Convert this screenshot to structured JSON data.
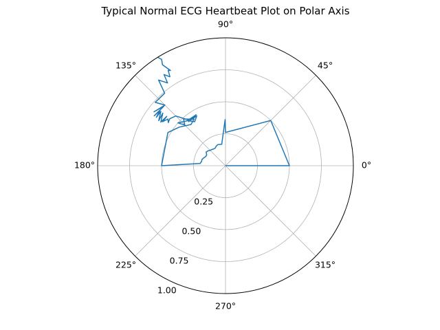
{
  "chart_data": {
    "type": "line",
    "projection": "polar",
    "title": "Typical Normal ECG Heartbeat Plot on Polar Axis",
    "theta_unit": "degrees",
    "r_range": [
      0,
      1.0
    ],
    "grid": true,
    "theta_ticks": [
      {
        "deg": 0,
        "label": "0°"
      },
      {
        "deg": 45,
        "label": "45°"
      },
      {
        "deg": 90,
        "label": "90°"
      },
      {
        "deg": 135,
        "label": "135°"
      },
      {
        "deg": 180,
        "label": "180°"
      },
      {
        "deg": 225,
        "label": "225°"
      },
      {
        "deg": 270,
        "label": "270°"
      },
      {
        "deg": 315,
        "label": "315°"
      }
    ],
    "r_ticks": [
      {
        "value": 0.25,
        "label": "0.25"
      },
      {
        "value": 0.5,
        "label": "0.50"
      },
      {
        "value": 0.75,
        "label": "0.75"
      },
      {
        "value": 1.0,
        "label": "1.00"
      }
    ],
    "series": [
      {
        "color": "#1f77b4",
        "points": [
          [
            0,
            0
          ],
          [
            0,
            0.5
          ],
          [
            45,
            0.5
          ],
          [
            90,
            0.26
          ],
          [
            90.5,
            0.36
          ],
          [
            100,
            0.17
          ],
          [
            110,
            0.175
          ],
          [
            115,
            0.17
          ],
          [
            120,
            0.16
          ],
          [
            125,
            0.16
          ],
          [
            130,
            0.165
          ],
          [
            135,
            0.17
          ],
          [
            140,
            0.18
          ],
          [
            145,
            0.185
          ],
          [
            150,
            0.17
          ],
          [
            155,
            0.17
          ],
          [
            160,
            0.18
          ],
          [
            165,
            0.19
          ],
          [
            170,
            0.19
          ],
          [
            175,
            0.2
          ],
          [
            180,
            0.5
          ],
          [
            150,
            0.52
          ],
          [
            140,
            0.47
          ],
          [
            130,
            0.42
          ],
          [
            124,
            0.44
          ],
          [
            132,
            0.49
          ],
          [
            135,
            0.45
          ],
          [
            138,
            0.5
          ],
          [
            130,
            0.46
          ],
          [
            125,
            0.42
          ],
          [
            120,
            0.45
          ],
          [
            130,
            0.45
          ],
          [
            120,
            0.46
          ],
          [
            129,
            0.46
          ],
          [
            135,
            0.55
          ],
          [
            140,
            0.57
          ],
          [
            143,
            0.56
          ],
          [
            141,
            0.58
          ],
          [
            145,
            0.6
          ],
          [
            140,
            0.6
          ],
          [
            146,
            0.61
          ],
          [
            140,
            0.64
          ],
          [
            146,
            0.63
          ],
          [
            140,
            0.66
          ],
          [
            145,
            0.66
          ],
          [
            140,
            0.67
          ],
          [
            145,
            0.68
          ],
          [
            136,
            0.67
          ],
          [
            143,
            0.7
          ],
          [
            135,
            0.67
          ],
          [
            138,
            0.74
          ],
          [
            130,
            0.74
          ],
          [
            128,
            0.85
          ],
          [
            125,
            0.79
          ],
          [
            124,
            0.86
          ],
          [
            122,
            0.82
          ],
          [
            121,
            0.87
          ],
          [
            120,
            0.86
          ],
          [
            122,
            0.93
          ],
          [
            121,
            0.97
          ],
          [
            122,
            1.0
          ]
        ]
      }
    ]
  }
}
